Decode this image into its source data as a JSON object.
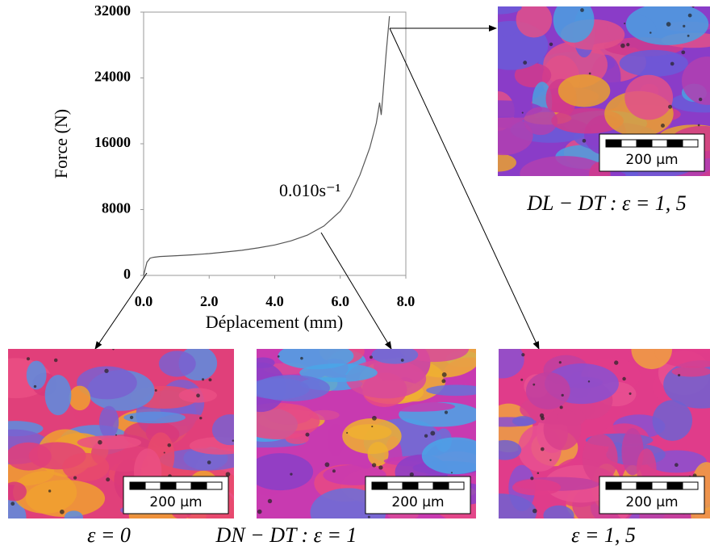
{
  "chart_data": {
    "type": "line",
    "xlabel": "Déplacement (mm)",
    "ylabel": "Force (N)",
    "annotation": "0.010s⁻¹",
    "x": [
      0,
      0.05,
      0.1,
      0.2,
      0.3,
      0.5,
      1,
      1.5,
      2,
      2.5,
      3,
      3.5,
      4,
      4.5,
      5,
      5.5,
      6,
      6.3,
      6.6,
      6.9,
      7.1,
      7.2,
      7.25,
      7.3,
      7.4,
      7.5
    ],
    "values": [
      0,
      800,
      1600,
      2100,
      2200,
      2300,
      2400,
      2500,
      2650,
      2850,
      3050,
      3350,
      3700,
      4200,
      4900,
      6000,
      7800,
      9600,
      12200,
      15500,
      18500,
      21000,
      19500,
      22000,
      27000,
      31500
    ],
    "color": "#555555",
    "xlim": [
      0,
      8
    ],
    "xticks": [
      {
        "value": 0,
        "label": "0.0"
      },
      {
        "value": 2,
        "label": "2.0"
      },
      {
        "value": 4,
        "label": "4.0"
      },
      {
        "value": 6,
        "label": "6.0"
      },
      {
        "value": 8,
        "label": "8.0"
      }
    ],
    "ylim": [
      0,
      32000
    ],
    "yticks": [
      0,
      8000,
      16000,
      24000,
      32000
    ]
  },
  "images": [
    {
      "scale_bar": "200 µm",
      "caption": "DL − DT :  ε = 1, 5"
    },
    {
      "scale_bar": "200 µm",
      "caption": "ε = 0"
    },
    {
      "scale_bar": "200 µm",
      "caption": "DN − DT :  ε = 1"
    },
    {
      "scale_bar": "200 µm",
      "caption": "ε = 1, 5"
    }
  ]
}
